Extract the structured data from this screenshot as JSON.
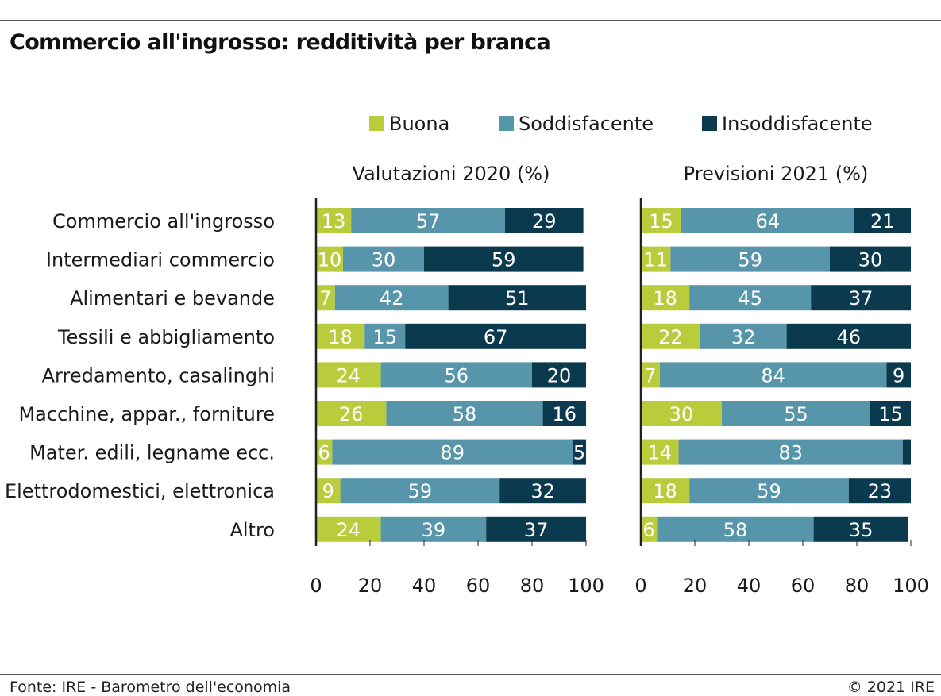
{
  "title": "Commercio all'ingrosso: redditività per branca",
  "source": "Fonte: IRE - Barometro dell'economia",
  "copyright": "© 2021 IRE",
  "colors": {
    "buona": "#b8cc3c",
    "soddisfacente": "#5795ab",
    "insoddisfacente": "#0b3a4e",
    "axis": "#222222"
  },
  "chart_data": {
    "type": "bar",
    "orientation": "horizontal",
    "stacked": true,
    "legend": [
      "Buona",
      "Soddisfacente",
      "Insoddisfacente"
    ],
    "legend_placement": "top",
    "categories": [
      "Commercio all'ingrosso",
      "Intermediari commercio",
      "Alimentari e bevande",
      "Tessili e abbigliamento",
      "Arredamento, casalinghi",
      "Macchine, appar., forniture",
      "Mater. edili, legname ecc.",
      "Elettrodomestici, elettronica",
      "Altro"
    ],
    "panels": [
      {
        "title": "Valutazioni 2020 (%)",
        "xlim": [
          0,
          100
        ],
        "ticks": [
          0,
          20,
          40,
          60,
          80,
          100
        ],
        "series": [
          {
            "name": "Buona",
            "values": [
              13,
              10,
              7,
              18,
              24,
              26,
              6,
              9,
              24
            ]
          },
          {
            "name": "Soddisfacente",
            "values": [
              57,
              30,
              42,
              15,
              56,
              58,
              89,
              59,
              39
            ]
          },
          {
            "name": "Insoddisfacente",
            "values": [
              29,
              59,
              51,
              67,
              20,
              16,
              5,
              32,
              37
            ]
          }
        ]
      },
      {
        "title": "Previsioni 2021 (%)",
        "xlim": [
          0,
          100
        ],
        "ticks": [
          0,
          20,
          40,
          60,
          80,
          100
        ],
        "series": [
          {
            "name": "Buona",
            "values": [
              15,
              11,
              18,
              22,
              7,
              30,
              14,
              18,
              6
            ]
          },
          {
            "name": "Soddisfacente",
            "values": [
              64,
              59,
              45,
              32,
              84,
              55,
              83,
              59,
              58
            ]
          },
          {
            "name": "Insoddisfacente",
            "values": [
              21,
              30,
              37,
              46,
              9,
              15,
              3,
              23,
              35
            ]
          }
        ]
      }
    ],
    "hidden_labels": [
      [],
      [
        [
          6,
          2
        ]
      ]
    ]
  }
}
